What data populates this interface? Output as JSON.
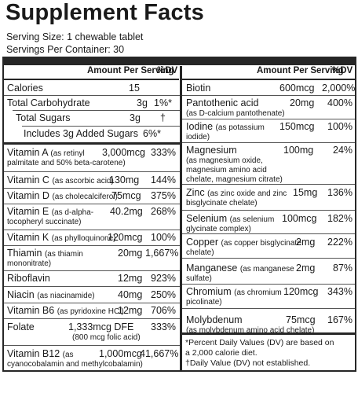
{
  "title": "Supplement Facts",
  "serving_size": "Serving Size: 1 chewable tablet",
  "servings_per_container": "Servings Per Container: 30",
  "header": {
    "amount": "Amount Per Serving",
    "dv": "%DV"
  },
  "left": {
    "calories": {
      "name": "Calories",
      "amount": "15",
      "dv": ""
    },
    "carb": {
      "name": "Total Carbohydrate",
      "amount": "3g",
      "dv": "1%*"
    },
    "sugars": {
      "name": "Total Sugars",
      "amount": "3g",
      "dv": "†"
    },
    "added": {
      "name": "Includes 3g Added Sugars",
      "amount": "",
      "dv": "6%*"
    },
    "vitA": {
      "name": "Vitamin A",
      "sub": "(as retinyl",
      "sub2": "palmitate and 50% beta-carotene)",
      "amount": "3,000mcg",
      "dv": "333%"
    },
    "vitC": {
      "name": "Vitamin C",
      "sub": "(as ascorbic acid)",
      "amount": "130mg",
      "dv": "144%"
    },
    "vitD": {
      "name": "Vitamin D",
      "sub": "(as cholecalciferol)",
      "amount": "75mcg",
      "dv": "375%"
    },
    "vitE": {
      "name": "Vitamin E",
      "sub": "(as d-alpha-",
      "sub2": "tocopheryl succinate)",
      "amount": "40.2mg",
      "dv": "268%"
    },
    "vitK": {
      "name": "Vitamin K",
      "sub": "(as phylloquinone)",
      "amount": "120mcg",
      "dv": "100%"
    },
    "thiamin": {
      "name": "Thiamin",
      "sub": "(as thiamin",
      "sub2": "mononitrate)",
      "amount": "20mg",
      "dv": "1,667%"
    },
    "riboflavin": {
      "name": "Riboflavin",
      "amount": "12mg",
      "dv": "923%"
    },
    "niacin": {
      "name": "Niacin",
      "sub": "(as niacinamide)",
      "amount": "40mg",
      "dv": "250%"
    },
    "vitB6": {
      "name": "Vitamin B6",
      "sub": "(as pyridoxine HCl)",
      "amount": "12mg",
      "dv": "706%"
    },
    "folate": {
      "name": "Folate",
      "amount": "1,333mcg DFE",
      "sub_amount": "(800 mcg folic acid)",
      "dv": "333%"
    },
    "vitB12": {
      "name": "Vitamin B12",
      "sub": "(as",
      "sub2": "cyanocobalamin and methylcobalamin)",
      "amount": "1,000mcg",
      "dv": "41,667%"
    }
  },
  "right": {
    "biotin": {
      "name": "Biotin",
      "amount": "600mcg",
      "dv": "2,000%"
    },
    "pantothenic": {
      "name": "Pantothenic acid",
      "sub": "(as D-calcium pantothenate)",
      "amount": "20mg",
      "dv": "400%"
    },
    "iodine": {
      "name": "Iodine",
      "sub": "(as potassium",
      "sub2": "iodide)",
      "amount": "150mcg",
      "dv": "100%"
    },
    "magnesium": {
      "name": "Magnesium",
      "sub": "(as magnesium oxide,",
      "sub2": "magnesium amino acid",
      "sub3": "chelate, magnesium citrate)",
      "amount": "100mg",
      "dv": "24%"
    },
    "zinc": {
      "name": "Zinc",
      "sub": "(as zinc oxide and zinc",
      "sub2": "bisglycinate chelate)",
      "amount": "15mg",
      "dv": "136%"
    },
    "selenium": {
      "name": "Selenium",
      "sub": "(as selenium",
      "sub2": "glycinate complex)",
      "amount": "100mcg",
      "dv": "182%"
    },
    "copper": {
      "name": "Copper",
      "sub": "(as copper bisglycinate",
      "sub2": "chelate)",
      "amount": "2mg",
      "dv": "222%"
    },
    "manganese": {
      "name": "Manganese",
      "sub": "(as manganese",
      "sub2": "sulfate)",
      "amount": "2mg",
      "dv": "87%"
    },
    "chromium": {
      "name": "Chromium",
      "sub": "(as chromium",
      "sub2": "picolinate)",
      "amount": "120mcg",
      "dv": "343%"
    },
    "molybdenum": {
      "name": "Molybdenum",
      "sub": "(as molybdenum amino acid chelate)",
      "amount": "75mcg",
      "dv": "167%"
    }
  },
  "footnotes": {
    "line1": "*Percent Daily Values (DV) are based on",
    "line2": "a 2,000 calorie diet.",
    "line3": "†Daily Value (DV) not established."
  }
}
